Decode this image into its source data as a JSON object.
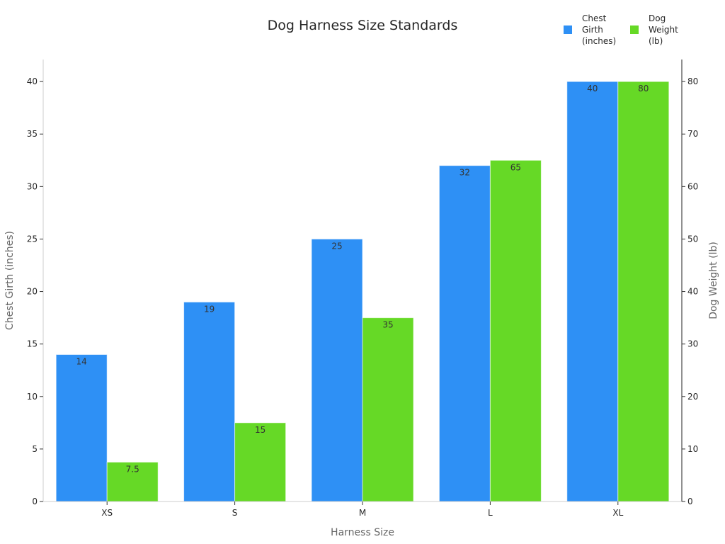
{
  "chart_data": {
    "type": "bar",
    "title": "Dog Harness Size Standards",
    "xlabel": "Harness Size",
    "ylabel": "Chest Girth (inches)",
    "y2label": "Dog Weight (lb)",
    "categories": [
      "XS",
      "S",
      "M",
      "L",
      "XL"
    ],
    "series": [
      {
        "name": "Chest Girth (inches)",
        "axis": "left",
        "color": "#2e90f5",
        "values": [
          14,
          19,
          25,
          32,
          40
        ],
        "labels": [
          "14",
          "19",
          "25",
          "32",
          "40"
        ]
      },
      {
        "name": "Dog Weight (lb)",
        "axis": "right",
        "color": "#66d926",
        "values": [
          7.5,
          15,
          35,
          65,
          80
        ],
        "labels": [
          "7.5",
          "15",
          "35",
          "65",
          "80"
        ]
      }
    ],
    "ylim": [
      0,
      42.1
    ],
    "y2lim": [
      0,
      84.2
    ],
    "yticks": [
      "0",
      "5",
      "10",
      "15",
      "20",
      "25",
      "30",
      "35",
      "40"
    ],
    "y2ticks": [
      "0",
      "10",
      "20",
      "30",
      "40",
      "50",
      "60",
      "70",
      "80"
    ],
    "legend": {
      "position": "top-right",
      "entries": [
        [
          "Chest",
          "Girth",
          "(inches)"
        ],
        [
          "Dog",
          "Weight",
          "(lb)"
        ]
      ]
    },
    "grid": false
  }
}
